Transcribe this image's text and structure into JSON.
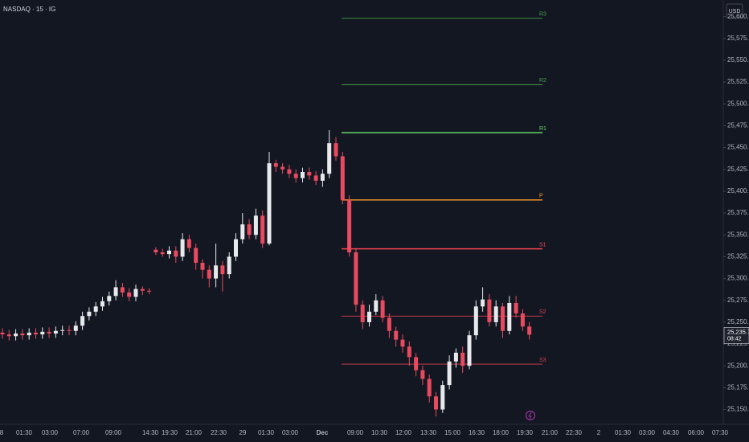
{
  "chart_data": {
    "type": "candlestick",
    "title": "NASDAQ · 15 · IG",
    "currency": "USD",
    "up_color": "#e8e9ec",
    "down_color": "#e84a5f",
    "open": [
      25238,
      25236,
      25234,
      25237,
      25235,
      25238,
      25236,
      25239,
      25237,
      25240,
      25241,
      25240,
      25246,
      25257,
      25262,
      25268,
      25274,
      25280,
      25290,
      25284,
      25279,
      25288,
      25286,
      25333,
      25330,
      25328,
      25332,
      25325,
      25345,
      25335,
      25318,
      25310,
      25300,
      25315,
      25305,
      25325,
      25345,
      25362,
      25350,
      25372,
      25340,
      25432,
      25428,
      25425,
      25420,
      25415,
      25422,
      25418,
      25412,
      25420,
      25455,
      25440,
      25390,
      25330,
      25270,
      25250,
      25262,
      25275,
      25255,
      25240,
      25230,
      25222,
      25210,
      25195,
      25185,
      25165,
      25150,
      25178,
      25205,
      25215,
      25200,
      25235,
      25268,
      25276,
      25250,
      25268,
      25240,
      25272,
      25260,
      25245
    ],
    "high": [
      25243,
      25241,
      25242,
      25242,
      25243,
      25243,
      25244,
      25244,
      25245,
      25246,
      25246,
      25251,
      25262,
      25267,
      25273,
      25279,
      25285,
      25298,
      25295,
      25289,
      25293,
      25291,
      25289,
      25336,
      25334,
      25337,
      25337,
      25352,
      25350,
      25340,
      25322,
      25315,
      25340,
      25320,
      25330,
      25352,
      25375,
      25368,
      25380,
      25378,
      25445,
      25436,
      25432,
      25430,
      25425,
      25427,
      25427,
      25423,
      25425,
      25470,
      25462,
      25445,
      25395,
      25335,
      25275,
      25270,
      25282,
      25280,
      25260,
      25245,
      25236,
      25228,
      25215,
      25200,
      25190,
      25170,
      25183,
      25212,
      25220,
      25222,
      25240,
      25275,
      25290,
      25282,
      25275,
      25272,
      25280,
      25280,
      25265,
      25250
    ],
    "low": [
      25231,
      25229,
      25229,
      25230,
      25230,
      25231,
      25231,
      25232,
      25232,
      25235,
      25235,
      25235,
      25241,
      25252,
      25257,
      25263,
      25269,
      25275,
      25279,
      25274,
      25274,
      25281,
      25282,
      25327,
      25325,
      25323,
      25318,
      25320,
      25330,
      25310,
      25300,
      25290,
      25290,
      25285,
      25300,
      25320,
      25340,
      25345,
      25345,
      25335,
      25338,
      25422,
      25420,
      25415,
      25410,
      25410,
      25413,
      25407,
      25405,
      25415,
      25435,
      25385,
      25325,
      25262,
      25242,
      25245,
      25258,
      25250,
      25232,
      25222,
      25215,
      25200,
      25188,
      25178,
      25158,
      25142,
      25146,
      25173,
      25198,
      25192,
      25196,
      25230,
      25262,
      25245,
      25245,
      25232,
      25236,
      25255,
      25240,
      25230
    ],
    "close": [
      25236,
      25234,
      25237,
      25235,
      25238,
      25236,
      25239,
      25237,
      25240,
      25241,
      25240,
      25246,
      25257,
      25262,
      25268,
      25274,
      25280,
      25290,
      25284,
      25279,
      25288,
      25286,
      25285,
      25330,
      25328,
      25332,
      25325,
      25345,
      25335,
      25318,
      25310,
      25300,
      25315,
      25305,
      25325,
      25345,
      25362,
      25350,
      25372,
      25340,
      25432,
      25428,
      25425,
      25420,
      25415,
      25422,
      25418,
      25412,
      25420,
      25455,
      25440,
      25390,
      25330,
      25270,
      25250,
      25262,
      25275,
      25255,
      25240,
      25230,
      25222,
      25210,
      25195,
      25185,
      25165,
      25150,
      25178,
      25205,
      25215,
      25200,
      25235,
      25268,
      25276,
      25250,
      25268,
      25240,
      25272,
      25260,
      25245,
      25235.7
    ],
    "x_labels": [
      "8",
      "01:30",
      "03:00",
      "07:00",
      "09:00",
      "14:30",
      "19:30",
      "21:00",
      "22:30",
      "29",
      "01:30",
      "03:00",
      "Dec",
      "09:00",
      "10:30",
      "12:00",
      "13:30",
      "15:00",
      "16:30",
      "18:00",
      "19:30",
      "21:00",
      "22:30",
      "2",
      "01:30",
      "03:00",
      "04:30",
      "06:00",
      "07:30"
    ],
    "ylim": [
      25133,
      25619
    ],
    "yticks": [
      {
        "value": 25150,
        "label": "25,150.0"
      },
      {
        "value": 25175,
        "label": "25,175.0"
      },
      {
        "value": 25200,
        "label": "25,200.0"
      },
      {
        "value": 25225,
        "label": "25,225.0"
      },
      {
        "value": 25250,
        "label": "25,250.0"
      },
      {
        "value": 25275,
        "label": "25,275.0"
      },
      {
        "value": 25300,
        "label": "25,300.0"
      },
      {
        "value": 25325,
        "label": "25,325.0"
      },
      {
        "value": 25350,
        "label": "25,350.0"
      },
      {
        "value": 25375,
        "label": "25,375.0"
      },
      {
        "value": 25400,
        "label": "25,400.0"
      },
      {
        "value": 25425,
        "label": "25,425.0"
      },
      {
        "value": 25450,
        "label": "25,450.0"
      },
      {
        "value": 25475,
        "label": "25,475.0"
      },
      {
        "value": 25500,
        "label": "25,500.0"
      },
      {
        "value": 25525,
        "label": "25,525.0"
      },
      {
        "value": 25550,
        "label": "25,550.0"
      },
      {
        "value": 25575,
        "label": "25,575.0"
      },
      {
        "value": 25600,
        "label": "25,600.0"
      }
    ],
    "pivots": [
      {
        "label": "R3",
        "value": 25598,
        "color": "#43a047"
      },
      {
        "label": "R2",
        "value": 25522,
        "color": "#43a047"
      },
      {
        "label": "R1",
        "value": 25467,
        "color": "#66d766"
      },
      {
        "label": "P",
        "value": 25390,
        "color": "#ff9e2c"
      },
      {
        "label": "S1",
        "value": 25334,
        "color": "#f0444f"
      },
      {
        "label": "S2",
        "value": 25257,
        "color": "#d8404c"
      },
      {
        "label": "S3",
        "value": 25202,
        "color": "#d8404c"
      }
    ],
    "last_price": {
      "value": 25235.7,
      "label": "25,235.7"
    },
    "countdown": "08:42"
  }
}
